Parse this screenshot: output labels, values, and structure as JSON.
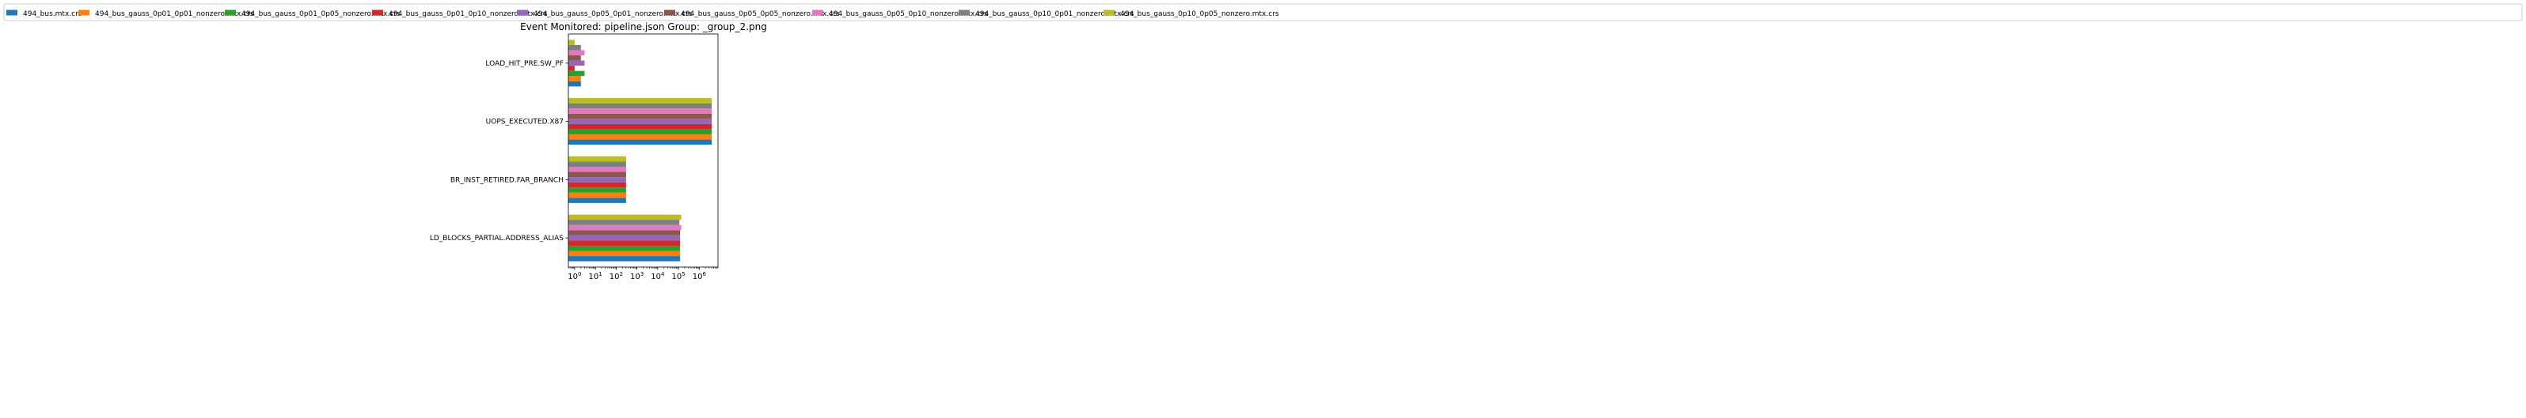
{
  "chart_data": {
    "type": "bar",
    "orientation": "horizontal",
    "title": "Event Monitored: pipeline.json Group: _group_2.png",
    "xlabel": "",
    "ylabel": "",
    "xscale": "log",
    "xlim": [
      0.5,
      8000000
    ],
    "x_ticks": [
      1,
      10,
      100,
      1000,
      10000,
      100000,
      1000000
    ],
    "x_tick_labels": [
      {
        "base": "10",
        "exp": "0"
      },
      {
        "base": "10",
        "exp": "1"
      },
      {
        "base": "10",
        "exp": "2"
      },
      {
        "base": "10",
        "exp": "3"
      },
      {
        "base": "10",
        "exp": "4"
      },
      {
        "base": "10",
        "exp": "5"
      },
      {
        "base": "10",
        "exp": "6"
      }
    ],
    "categories": [
      "LD_BLOCKS_PARTIAL.ADDRESS_ALIAS",
      "BR_INST_RETIRED.FAR_BRANCH",
      "UOPS_EXECUTED.X87",
      "LOAD_HIT_PRE.SW_PF"
    ],
    "legend_position": "top, single row",
    "series": [
      {
        "name": "494_bus.mtx.crs",
        "color": "#1f77b4",
        "values": [
          120000,
          300,
          4000000,
          2
        ]
      },
      {
        "name": "494_bus_gauss_0p01_0p01_nonzero.mtx.crs",
        "color": "#ff7f0e",
        "values": [
          120000,
          300,
          4000000,
          2
        ]
      },
      {
        "name": "494_bus_gauss_0p01_0p05_nonzero.mtx.crs",
        "color": "#2ca02c",
        "values": [
          120000,
          300,
          4000000,
          3
        ]
      },
      {
        "name": "494_bus_gauss_0p01_0p10_nonzero.mtx.crs",
        "color": "#d62728",
        "values": [
          120000,
          300,
          4000000,
          1
        ]
      },
      {
        "name": "494_bus_gauss_0p05_0p01_nonzero.mtx.crs",
        "color": "#9467bd",
        "values": [
          120000,
          300,
          4000000,
          3
        ]
      },
      {
        "name": "494_bus_gauss_0p05_0p05_nonzero.mtx.crs",
        "color": "#8c564b",
        "values": [
          120000,
          300,
          4000000,
          2
        ]
      },
      {
        "name": "494_bus_gauss_0p05_0p10_nonzero.mtx.crs",
        "color": "#e377c2",
        "values": [
          135000,
          300,
          4000000,
          3
        ]
      },
      {
        "name": "494_bus_gauss_0p10_0p01_nonzero.mtx.crs",
        "color": "#7f7f7f",
        "values": [
          110000,
          300,
          4000000,
          2
        ]
      },
      {
        "name": "494_bus_gauss_0p10_0p05_nonzero.mtx.crs",
        "color": "#bcbd22",
        "values": [
          135000,
          300,
          4000000,
          1
        ]
      }
    ]
  }
}
